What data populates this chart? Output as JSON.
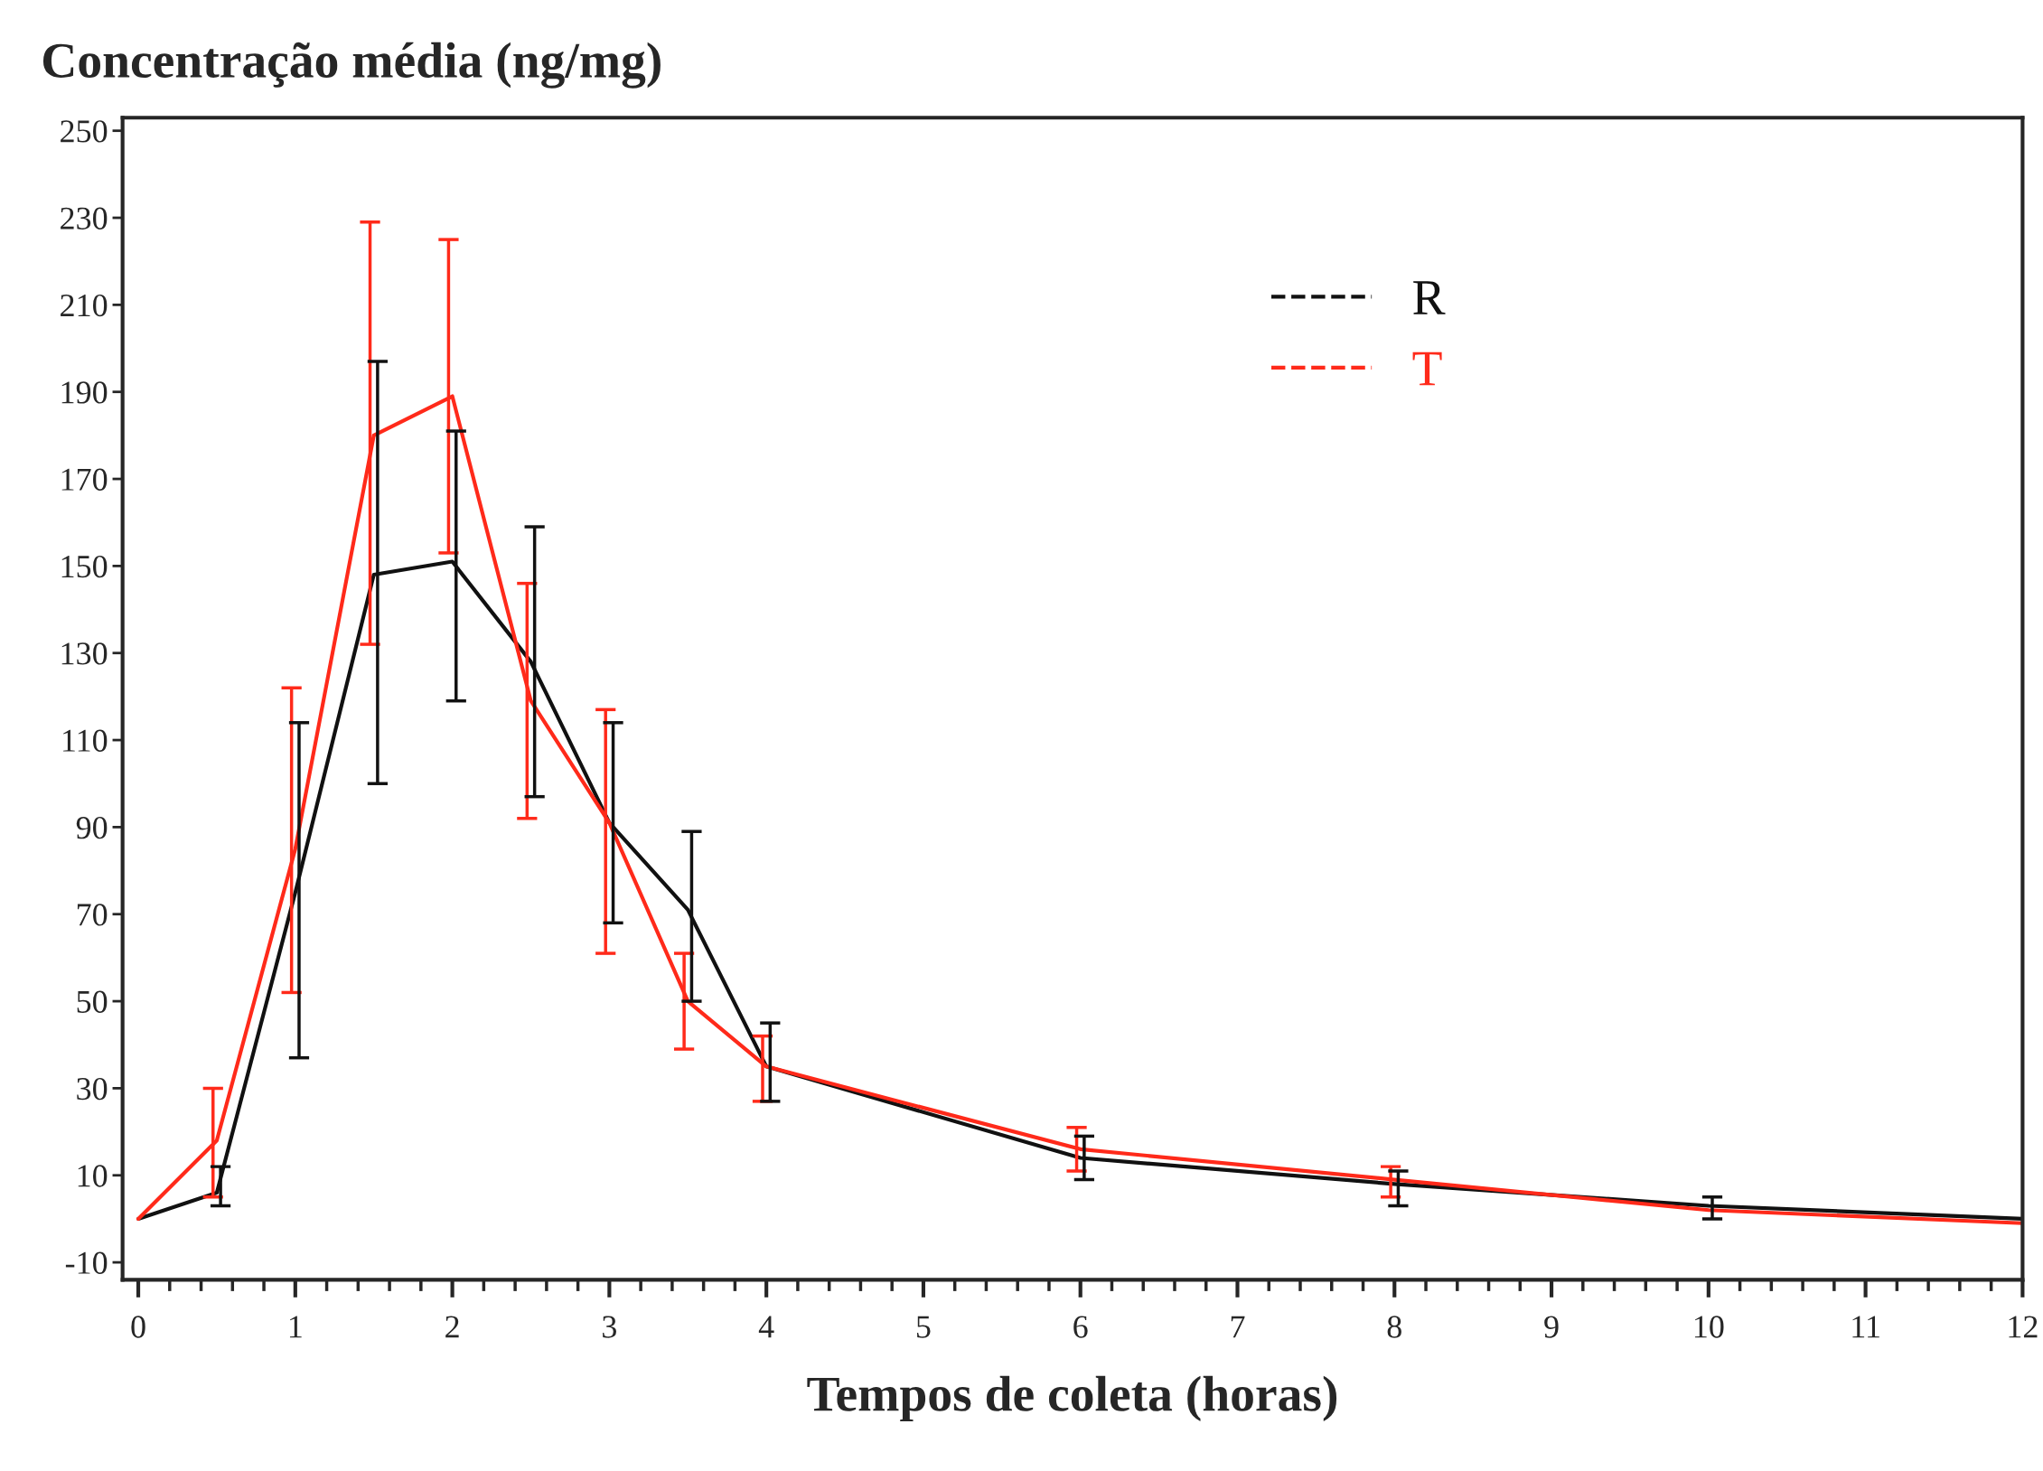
{
  "chart_data": {
    "type": "line",
    "ylabel": "Concentração média (ng/mg)",
    "xlabel": "Tempos de coleta (horas)",
    "x": [
      0,
      0.5,
      1,
      1.5,
      2,
      2.5,
      3,
      3.5,
      4,
      6,
      8,
      10,
      12
    ],
    "series": [
      {
        "name": "R",
        "color": "#111111",
        "values": [
          0,
          6,
          75,
          148,
          151,
          128,
          91,
          71,
          35,
          14,
          8,
          3,
          0
        ],
        "errors": [
          null,
          [
            3,
            12
          ],
          [
            37,
            114
          ],
          [
            100,
            197
          ],
          [
            119,
            181
          ],
          [
            97,
            159
          ],
          [
            68,
            114
          ],
          [
            50,
            89
          ],
          [
            27,
            45
          ],
          [
            9,
            19
          ],
          [
            3,
            11
          ],
          [
            0,
            5
          ],
          null
        ]
      },
      {
        "name": "T",
        "color": "#ff2a1a",
        "values": [
          0,
          18,
          85,
          180,
          189,
          119,
          91,
          50,
          35,
          16,
          9,
          2,
          -1
        ],
        "errors": [
          null,
          [
            5,
            30
          ],
          [
            52,
            122
          ],
          [
            132,
            229
          ],
          [
            153,
            225
          ],
          [
            92,
            146
          ],
          [
            61,
            117
          ],
          [
            39,
            61
          ],
          [
            27,
            42
          ],
          [
            11,
            21
          ],
          [
            5,
            12
          ],
          null,
          null
        ]
      }
    ],
    "xlim": [
      -0.1,
      12
    ],
    "xticks": [
      0,
      1,
      2,
      3,
      4,
      5,
      6,
      7,
      8,
      9,
      10,
      11,
      12
    ],
    "ylim": [
      -14,
      253
    ],
    "yticks": [
      -10,
      10,
      30,
      50,
      70,
      90,
      110,
      130,
      150,
      170,
      190,
      210,
      230,
      250
    ],
    "grid": false,
    "legend": "top right"
  }
}
